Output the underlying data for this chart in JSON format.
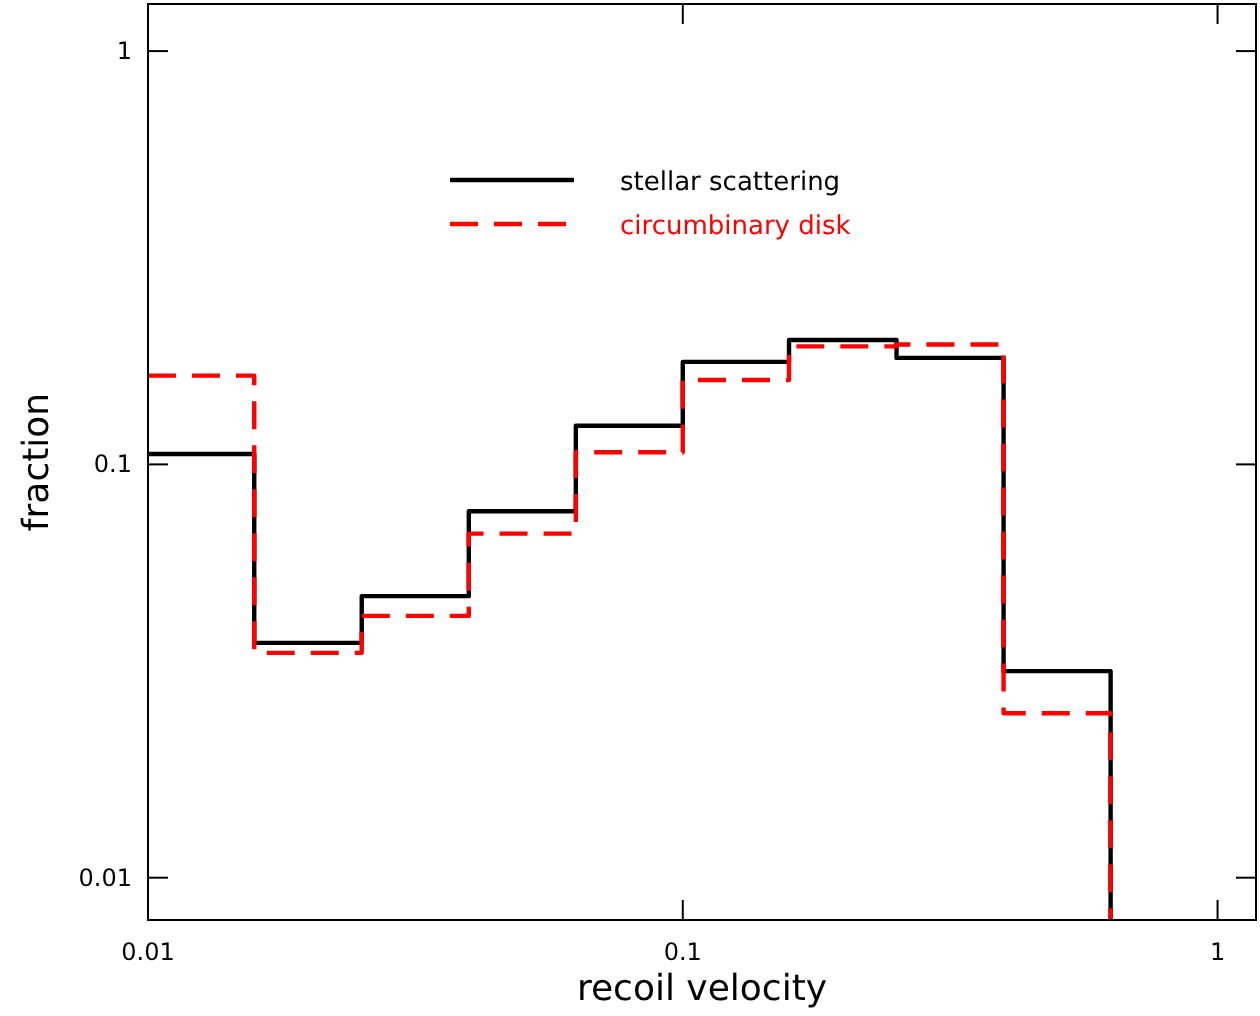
{
  "chart_data": {
    "type": "histogram",
    "xlabel": "recoil velocity",
    "ylabel": "fraction",
    "log": "xy",
    "bins": [
      0.01,
      0.0158,
      0.0251,
      0.0398,
      0.0631,
      0.1,
      0.158,
      0.251,
      0.398,
      0.631
    ],
    "series": [
      {
        "name": "stellar scattering",
        "color": "#000000",
        "line_style": "solid",
        "values": [
          0.106,
          0.037,
          0.048,
          0.077,
          0.124,
          0.177,
          0.2,
          0.181,
          0.0316
        ]
      },
      {
        "name": "circumbinary disk",
        "color": "#ff0000",
        "line_style": "dashed",
        "values": [
          0.164,
          0.035,
          0.043,
          0.068,
          0.107,
          0.16,
          0.193,
          0.195,
          0.025
        ]
      }
    ],
    "xlim": [
      0.01,
      1.18
    ],
    "ylim": [
      0.0079,
      1.3
    ],
    "xticks": [
      0.01,
      0.1,
      1
    ],
    "yticks": [
      0.01,
      0.1,
      1
    ],
    "legend": "top"
  }
}
